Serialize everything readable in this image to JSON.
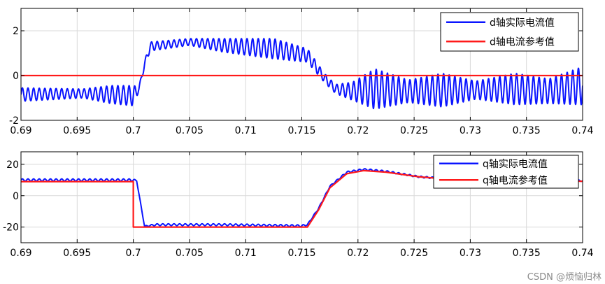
{
  "watermark": "CSDN @烦恼归林",
  "colors": {
    "actual": "#0a14ff",
    "reference": "#ff1a1a",
    "grid": "#d9d9d9",
    "axis": "#000000"
  },
  "chart_data": [
    {
      "type": "line",
      "xlim": [
        0.69,
        0.74
      ],
      "ylim": [
        -2,
        3
      ],
      "x_ticks": [
        0.69,
        0.695,
        0.7,
        0.705,
        0.71,
        0.715,
        0.72,
        0.725,
        0.73,
        0.735,
        0.74
      ],
      "x_tick_labels": [
        "0.69",
        "0.695",
        "0.7",
        "0.705",
        "0.71",
        "0.715",
        "0.72",
        "0.725",
        "0.73",
        "0.735",
        "0.74"
      ],
      "y_ticks": [
        -2,
        0,
        2
      ],
      "y_tick_labels": [
        "-2",
        "0",
        "2"
      ],
      "grid": true,
      "legend_position": "top-right",
      "series": [
        {
          "name": "d轴实际电流值",
          "color": "#0a14ff",
          "oscillation_period": 0.0005,
          "envelope": [
            {
              "x": 0.69,
              "center": -0.85,
              "amp": 0.3
            },
            {
              "x": 0.6955,
              "center": -0.8,
              "amp": 0.2
            },
            {
              "x": 0.698,
              "center": -0.85,
              "amp": 0.4
            },
            {
              "x": 0.7,
              "center": -0.9,
              "amp": 0.45
            },
            {
              "x": 0.7005,
              "center": -0.6,
              "amp": 0.1
            },
            {
              "x": 0.701,
              "center": 0.5,
              "amp": 0.15
            },
            {
              "x": 0.7015,
              "center": 1.3,
              "amp": 0.2
            },
            {
              "x": 0.705,
              "center": 1.5,
              "amp": 0.15
            },
            {
              "x": 0.708,
              "center": 1.35,
              "amp": 0.3
            },
            {
              "x": 0.7125,
              "center": 1.2,
              "amp": 0.45
            },
            {
              "x": 0.7155,
              "center": 0.9,
              "amp": 0.3
            },
            {
              "x": 0.717,
              "center": -0.1,
              "amp": 0.2
            },
            {
              "x": 0.718,
              "center": -0.6,
              "amp": 0.2
            },
            {
              "x": 0.7195,
              "center": -0.7,
              "amp": 0.4
            },
            {
              "x": 0.7215,
              "center": -0.6,
              "amp": 0.9
            },
            {
              "x": 0.7245,
              "center": -0.7,
              "amp": 0.5
            },
            {
              "x": 0.7275,
              "center": -0.65,
              "amp": 0.75
            },
            {
              "x": 0.7305,
              "center": -0.65,
              "amp": 0.4
            },
            {
              "x": 0.734,
              "center": -0.6,
              "amp": 0.7
            },
            {
              "x": 0.737,
              "center": -0.7,
              "amp": 0.55
            },
            {
              "x": 0.74,
              "center": -0.45,
              "amp": 0.85
            }
          ]
        },
        {
          "name": "d轴电流参考值",
          "color": "#ff1a1a",
          "x": [
            0.69,
            0.74
          ],
          "y": [
            0,
            0
          ]
        }
      ]
    },
    {
      "type": "line",
      "xlim": [
        0.69,
        0.74
      ],
      "ylim": [
        -30,
        28
      ],
      "x_ticks": [
        0.69,
        0.695,
        0.7,
        0.705,
        0.71,
        0.715,
        0.72,
        0.725,
        0.73,
        0.735,
        0.74
      ],
      "x_tick_labels": [
        "0.69",
        "0.695",
        "0.7",
        "0.705",
        "0.71",
        "0.715",
        "0.72",
        "0.725",
        "0.73",
        "0.735",
        "0.74"
      ],
      "y_ticks": [
        -20,
        0,
        20
      ],
      "y_tick_labels": [
        "-20",
        "0",
        "20"
      ],
      "grid": true,
      "legend_position": "top-right",
      "series": [
        {
          "name": "q轴实际电流值",
          "color": "#0a14ff",
          "oscillation_period": 0.0005,
          "envelope": [
            {
              "x": 0.69,
              "center": 10,
              "amp": 0.7
            },
            {
              "x": 0.7,
              "center": 10,
              "amp": 0.7
            },
            {
              "x": 0.7003,
              "center": 9.5,
              "amp": 0.3
            },
            {
              "x": 0.701,
              "center": -19.5,
              "amp": 0.3
            },
            {
              "x": 0.702,
              "center": -18.5,
              "amp": 0.6
            },
            {
              "x": 0.708,
              "center": -18.5,
              "amp": 0.6
            },
            {
              "x": 0.715,
              "center": -19.2,
              "amp": 0.6
            },
            {
              "x": 0.7155,
              "center": -18.5,
              "amp": 0.4
            },
            {
              "x": 0.7165,
              "center": -8,
              "amp": 0.4
            },
            {
              "x": 0.7175,
              "center": 6,
              "amp": 0.4
            },
            {
              "x": 0.719,
              "center": 15,
              "amp": 0.5
            },
            {
              "x": 0.7205,
              "center": 16.8,
              "amp": 0.5
            },
            {
              "x": 0.7225,
              "center": 15.5,
              "amp": 0.5
            },
            {
              "x": 0.7255,
              "center": 12,
              "amp": 0.5
            },
            {
              "x": 0.729,
              "center": 10.3,
              "amp": 0.5
            },
            {
              "x": 0.74,
              "center": 9.6,
              "amp": 0.5
            }
          ]
        },
        {
          "name": "q轴电流参考值",
          "color": "#ff1a1a",
          "x": [
            0.69,
            0.7,
            0.7,
            0.701,
            0.7155,
            0.7165,
            0.7175,
            0.719,
            0.7205,
            0.7225,
            0.7255,
            0.729,
            0.74
          ],
          "y": [
            9,
            9,
            -20,
            -20,
            -20,
            -9,
            5,
            14,
            16,
            15,
            12,
            10,
            9.2
          ]
        }
      ]
    }
  ]
}
